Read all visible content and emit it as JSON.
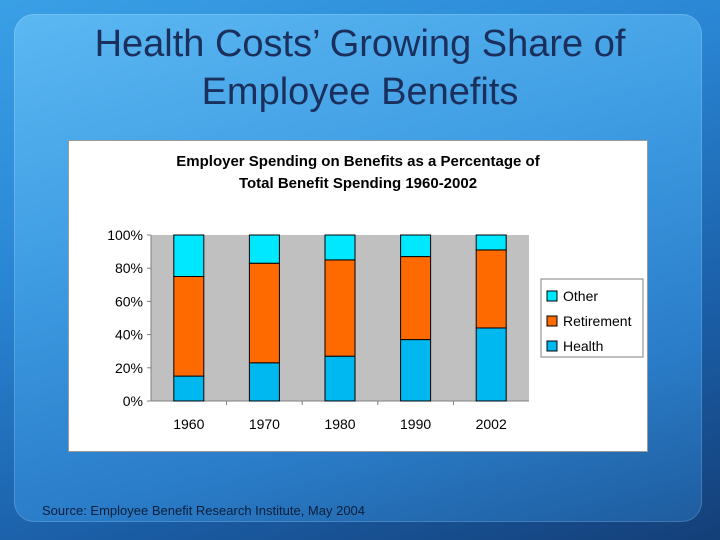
{
  "slide": {
    "title_line1": "Health Costs’ Growing Share of",
    "title_line2": "Employee Benefits",
    "source": "Source: Employee Benefit Research Institute, May 2004"
  },
  "chart_data": {
    "type": "bar",
    "stacked": true,
    "title_line1": "Employer Spending on Benefits as a Percentage of",
    "title_line2": "Total Benefit Spending 1960-2002",
    "categories": [
      "1960",
      "1970",
      "1980",
      "1990",
      "2002"
    ],
    "series": [
      {
        "name": "Health",
        "color": "#00b8f0",
        "values": [
          15,
          23,
          27,
          37,
          44
        ]
      },
      {
        "name": "Retirement",
        "color": "#ff6a00",
        "values": [
          60,
          60,
          58,
          50,
          47
        ]
      },
      {
        "name": "Other",
        "color": "#00e8ff",
        "values": [
          25,
          17,
          15,
          13,
          9
        ]
      }
    ],
    "legend_order": [
      "Other",
      "Retirement",
      "Health"
    ],
    "legend_position": "right",
    "ylim": [
      0,
      100
    ],
    "yticks": [
      "0%",
      "20%",
      "40%",
      "60%",
      "80%",
      "100%"
    ],
    "ytick_values": [
      0,
      20,
      40,
      60,
      80,
      100
    ],
    "plot_background": "#c0c0c0",
    "grid": false
  }
}
